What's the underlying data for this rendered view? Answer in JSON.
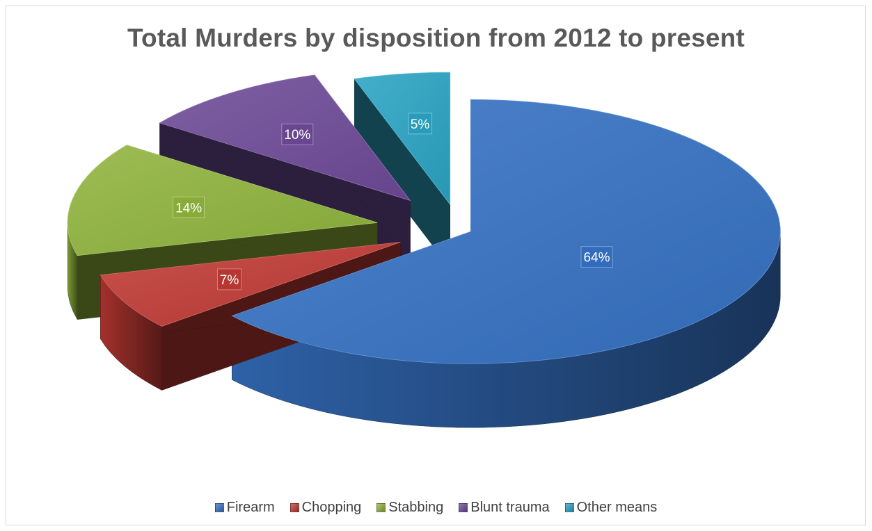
{
  "chart_data": {
    "type": "pie",
    "title": "Total Murders by disposition from 2012 to present",
    "categories": [
      "Firearm",
      "Chopping",
      "Stabbing",
      "Blunt trauma",
      "Other means"
    ],
    "values": [
      64,
      7,
      14,
      10,
      5
    ],
    "value_labels": [
      "64%",
      "7%",
      "14%",
      "10%",
      "5%"
    ],
    "colors": [
      "#3672c4",
      "#c03a34",
      "#90b43d",
      "#6e4a98",
      "#2aa4c4"
    ],
    "style": "3d-exploded",
    "legend_position": "bottom"
  }
}
